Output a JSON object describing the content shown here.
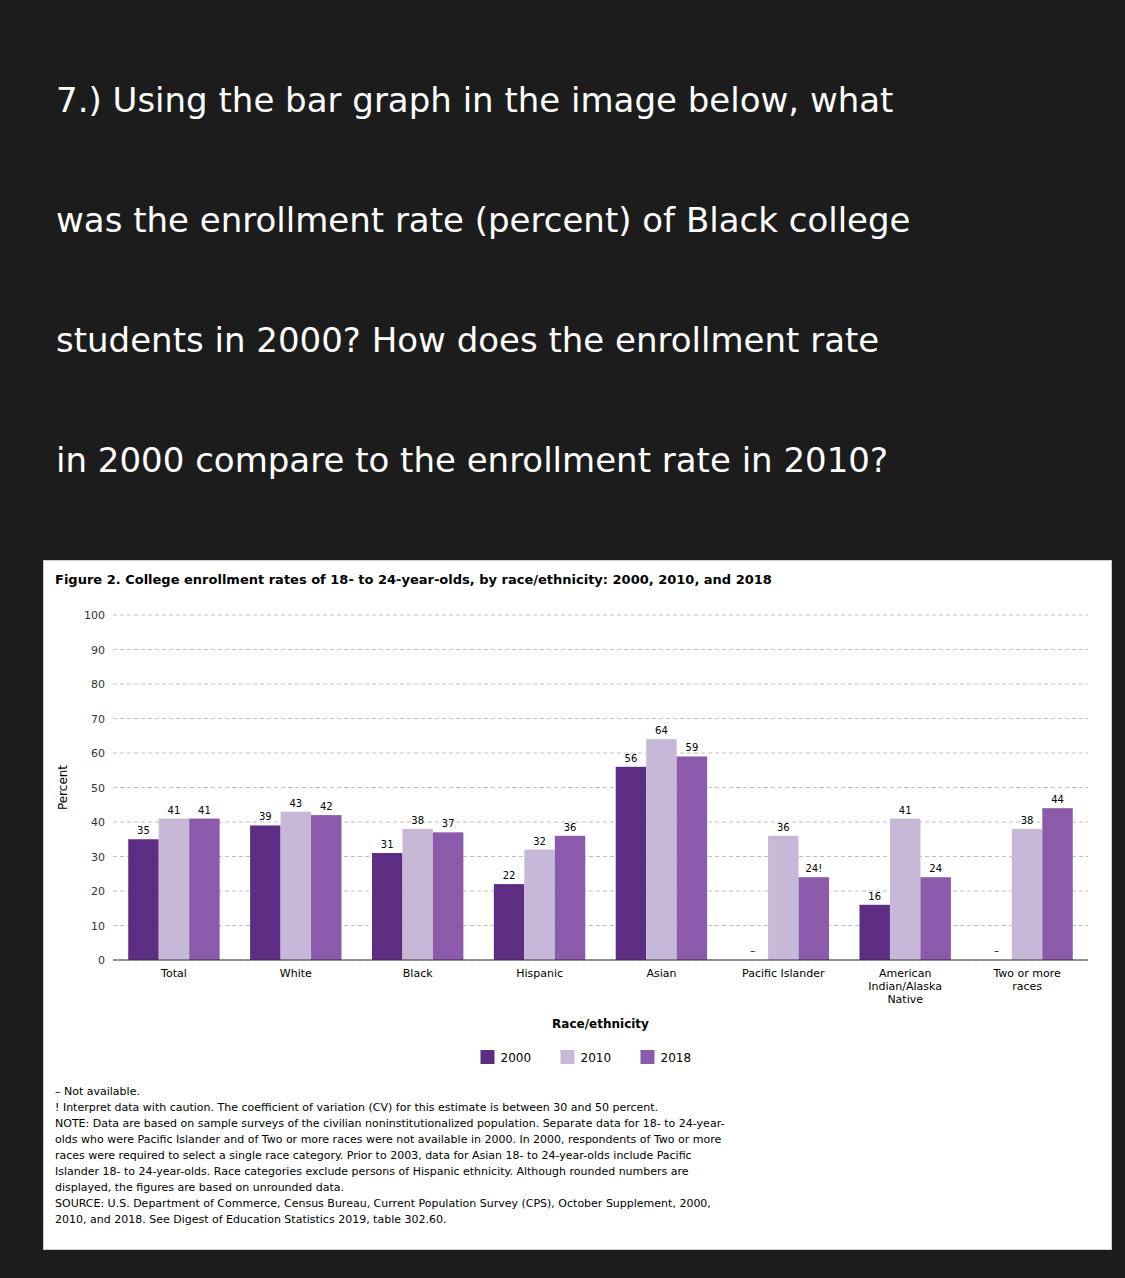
{
  "chart_data": {
    "type": "bar",
    "title": "Figure 2. College enrollment rates of 18- to 24-year-olds, by race/ethnicity: 2000, 2010, and 2018",
    "xlabel": "Race/ethnicity",
    "ylabel": "Percent",
    "categories": [
      "Total",
      "White",
      "Black",
      "Hispanic",
      "Asian",
      "Pacific Islander",
      "American\nIndian/Alaska\nNative",
      "Two or more\nraces"
    ],
    "series": [
      {
        "name": "2000",
        "color": "#5c2d82",
        "values": [
          35,
          39,
          31,
          22,
          56,
          null,
          16,
          null
        ],
        "value_labels": [
          "35",
          "39",
          "31",
          "22",
          "56",
          "–",
          "16",
          "–"
        ]
      },
      {
        "name": "2010",
        "color": "#c8b8d8",
        "values": [
          41,
          43,
          38,
          32,
          64,
          36,
          41,
          38
        ]
      },
      {
        "name": "2018",
        "color": "#8b5aaa",
        "values": [
          41,
          42,
          37,
          36,
          59,
          24,
          24,
          44
        ],
        "value_labels": [
          "41",
          "42",
          "37",
          "36",
          "59",
          "24!",
          "24",
          "44"
        ]
      }
    ],
    "ylim": [
      0,
      100
    ],
    "yticks": [
      0,
      10,
      20,
      30,
      40,
      50,
      60,
      70,
      80,
      90,
      100
    ],
    "grid": true,
    "legend": "bottom",
    "data_labels": true,
    "annotations": [
      "7.) Using the bar graph in the image below, what\nwas the enrollment rate (percent) of Black college\nstudents in 2000? How does the enrollment rate\nin 2000 compare to the enrollment rate in 2010?",
      "– Not available.\n! Interpret data with caution. The coefficient of variation (CV) for this estimate is between 30 and 50 percent.\nNOTE: Data are based on sample surveys of the civilian noninstitutionalized population. Separate data for 18- to 24-year-\nolds who were Pacific Islander and of Two or more races were not available in 2000. In 2000, respondents of Two or more\nraces were required to select a single race category. Prior to 2003, data for Asian 18- to 24-year-olds include Pacific\nIslander 18- to 24-year-olds. Race categories exclude persons of Hispanic ethnicity. Although rounded numbers are\ndisplayed, the figures are based on unrounded data.\nSOURCE: U.S. Department of Commerce, Census Bureau, Current Population Survey (CPS), October Supplement, 2000,\n2010, and 2018. See Digest of Education Statistics 2019, table 302.60."
    ]
  }
}
